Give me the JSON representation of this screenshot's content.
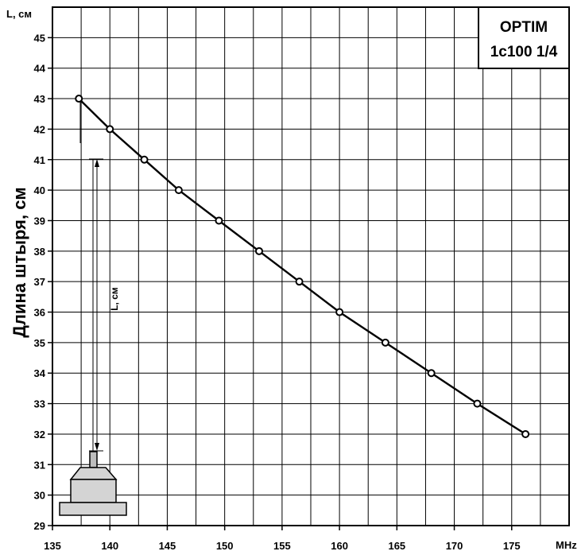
{
  "chart_data": {
    "type": "line",
    "title": "OPTIM",
    "subtitle": "1c100 1/4",
    "ylabel": "Длина штыря, см",
    "y_unit_label": "L, см",
    "x_unit_label": "MHz",
    "xlim": [
      135,
      180
    ],
    "ylim": [
      29,
      46
    ],
    "x_ticks": [
      135,
      140,
      145,
      150,
      155,
      160,
      165,
      170,
      175
    ],
    "y_ticks": [
      29,
      30,
      31,
      32,
      33,
      34,
      35,
      36,
      37,
      38,
      39,
      40,
      41,
      42,
      43,
      44,
      45
    ],
    "grid": true,
    "series": [
      {
        "x": [
          137.3,
          140,
          143,
          146,
          149.5,
          153,
          156.5,
          160,
          164,
          168,
          172,
          176.2
        ],
        "y": [
          43,
          42,
          41,
          40,
          39,
          38,
          37,
          36,
          35,
          34,
          33,
          32
        ]
      }
    ],
    "antenna_annotation": "L, см"
  }
}
